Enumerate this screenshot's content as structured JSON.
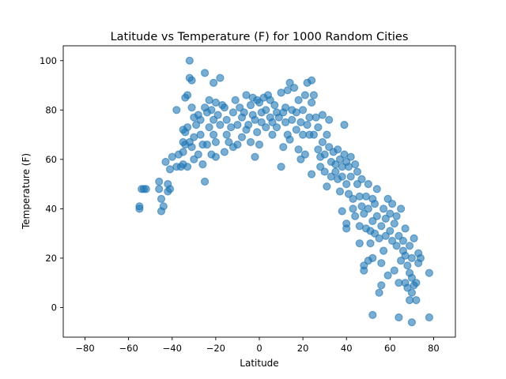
{
  "chart_data": {
    "type": "scatter",
    "title": "Latitude vs Temperature (F) for 1000 Random Cities",
    "xlabel": "Latitude",
    "ylabel": "Temperature (F)",
    "xlim": [
      -90,
      90
    ],
    "ylim": [
      -12,
      106
    ],
    "xticks": [
      -80,
      -60,
      -40,
      -20,
      0,
      20,
      40,
      60,
      80
    ],
    "yticks": [
      0,
      20,
      40,
      60,
      80,
      100
    ],
    "grid": false,
    "legend": "none",
    "marker_color": "#1f77b4",
    "marker_alpha": 0.6,
    "points": [
      [
        -55,
        40
      ],
      [
        -55,
        41
      ],
      [
        -54,
        48
      ],
      [
        -53,
        48
      ],
      [
        -52,
        48
      ],
      [
        -46,
        51
      ],
      [
        -46,
        48
      ],
      [
        -45,
        44
      ],
      [
        -45,
        39
      ],
      [
        -44,
        41
      ],
      [
        -43,
        59
      ],
      [
        -42,
        47
      ],
      [
        -42,
        50
      ],
      [
        -41,
        48
      ],
      [
        -41,
        56
      ],
      [
        -40,
        61
      ],
      [
        -38,
        80
      ],
      [
        -38,
        57
      ],
      [
        -37,
        62
      ],
      [
        -36,
        57
      ],
      [
        -35,
        63
      ],
      [
        -35,
        58
      ],
      [
        -35,
        67
      ],
      [
        -35,
        72
      ],
      [
        -34,
        85
      ],
      [
        -34,
        71
      ],
      [
        -34,
        66
      ],
      [
        -33,
        86
      ],
      [
        -33,
        57
      ],
      [
        -33,
        73
      ],
      [
        -32,
        100
      ],
      [
        -32,
        93
      ],
      [
        -32,
        67
      ],
      [
        -31,
        92
      ],
      [
        -31,
        81
      ],
      [
        -31,
        65
      ],
      [
        -30,
        77
      ],
      [
        -30,
        69
      ],
      [
        -30,
        60
      ],
      [
        -29,
        74
      ],
      [
        -28,
        62
      ],
      [
        -28,
        78
      ],
      [
        -27,
        76
      ],
      [
        -27,
        70
      ],
      [
        -26,
        58
      ],
      [
        -26,
        66
      ],
      [
        -25,
        95
      ],
      [
        -25,
        51
      ],
      [
        -25,
        81
      ],
      [
        -24,
        79
      ],
      [
        -24,
        66
      ],
      [
        -23,
        73
      ],
      [
        -23,
        84
      ],
      [
        -22,
        62
      ],
      [
        -22,
        80
      ],
      [
        -21,
        91
      ],
      [
        -21,
        76
      ],
      [
        -21,
        70
      ],
      [
        -20,
        83
      ],
      [
        -20,
        61
      ],
      [
        -20,
        67
      ],
      [
        -19,
        78
      ],
      [
        -18,
        93
      ],
      [
        -18,
        74
      ],
      [
        -17,
        82
      ],
      [
        -16,
        81
      ],
      [
        -16,
        63
      ],
      [
        -15,
        76
      ],
      [
        -15,
        70
      ],
      [
        -14,
        67
      ],
      [
        -13,
        73
      ],
      [
        -12,
        79
      ],
      [
        -12,
        65
      ],
      [
        -11,
        84
      ],
      [
        -10,
        74
      ],
      [
        -10,
        66
      ],
      [
        -9,
        81
      ],
      [
        -8,
        69
      ],
      [
        -8,
        77
      ],
      [
        -7,
        79
      ],
      [
        -6,
        72
      ],
      [
        -6,
        86
      ],
      [
        -5,
        74
      ],
      [
        -4,
        82
      ],
      [
        -4,
        67
      ],
      [
        -3,
        78
      ],
      [
        -3,
        85
      ],
      [
        -2,
        61
      ],
      [
        -2,
        76
      ],
      [
        -1,
        71
      ],
      [
        -1,
        84
      ],
      [
        0,
        83
      ],
      [
        0,
        66
      ],
      [
        1,
        79
      ],
      [
        1,
        75
      ],
      [
        2,
        85
      ],
      [
        3,
        73
      ],
      [
        3,
        80
      ],
      [
        4,
        86
      ],
      [
        5,
        77
      ],
      [
        5,
        84
      ],
      [
        6,
        75
      ],
      [
        6,
        70
      ],
      [
        7,
        82
      ],
      [
        8,
        79
      ],
      [
        8,
        73
      ],
      [
        9,
        77
      ],
      [
        10,
        57
      ],
      [
        10,
        87
      ],
      [
        11,
        79
      ],
      [
        11,
        65
      ],
      [
        12,
        75
      ],
      [
        12,
        81
      ],
      [
        13,
        88
      ],
      [
        13,
        70
      ],
      [
        14,
        91
      ],
      [
        14,
        68
      ],
      [
        15,
        76
      ],
      [
        15,
        80
      ],
      [
        16,
        89
      ],
      [
        17,
        72
      ],
      [
        17,
        79
      ],
      [
        18,
        64
      ],
      [
        18,
        84
      ],
      [
        19,
        60
      ],
      [
        19,
        75
      ],
      [
        20,
        70
      ],
      [
        20,
        80
      ],
      [
        21,
        86
      ],
      [
        21,
        62
      ],
      [
        22,
        74
      ],
      [
        22,
        91
      ],
      [
        23,
        70
      ],
      [
        23,
        77
      ],
      [
        24,
        54
      ],
      [
        24,
        92
      ],
      [
        24,
        83
      ],
      [
        25,
        70
      ],
      [
        25,
        86
      ],
      [
        26,
        77
      ],
      [
        27,
        64
      ],
      [
        27,
        73
      ],
      [
        28,
        61
      ],
      [
        28,
        57
      ],
      [
        29,
        67
      ],
      [
        29,
        78
      ],
      [
        30,
        55
      ],
      [
        30,
        62
      ],
      [
        31,
        70
      ],
      [
        31,
        49
      ],
      [
        32,
        76
      ],
      [
        32,
        65
      ],
      [
        33,
        59
      ],
      [
        33,
        53
      ],
      [
        34,
        63
      ],
      [
        35,
        58
      ],
      [
        35,
        55
      ],
      [
        36,
        64
      ],
      [
        36,
        52
      ],
      [
        37,
        47
      ],
      [
        37,
        60
      ],
      [
        38,
        39
      ],
      [
        38,
        57
      ],
      [
        38,
        53
      ],
      [
        39,
        74
      ],
      [
        39,
        62
      ],
      [
        40,
        34
      ],
      [
        40,
        32
      ],
      [
        40,
        59
      ],
      [
        40,
        50
      ],
      [
        41,
        57
      ],
      [
        41,
        46
      ],
      [
        42,
        61
      ],
      [
        42,
        53
      ],
      [
        43,
        40
      ],
      [
        43,
        44
      ],
      [
        44,
        58
      ],
      [
        44,
        37
      ],
      [
        45,
        50
      ],
      [
        45,
        55
      ],
      [
        46,
        33
      ],
      [
        46,
        26
      ],
      [
        46,
        45
      ],
      [
        47,
        41
      ],
      [
        47,
        52
      ],
      [
        48,
        15
      ],
      [
        48,
        17
      ],
      [
        48,
        38
      ],
      [
        49,
        45
      ],
      [
        49,
        32
      ],
      [
        50,
        19
      ],
      [
        50,
        50
      ],
      [
        50,
        40
      ],
      [
        51,
        31
      ],
      [
        51,
        26
      ],
      [
        52,
        20
      ],
      [
        52,
        44
      ],
      [
        52,
        35
      ],
      [
        52,
        -3
      ],
      [
        53,
        42
      ],
      [
        53,
        30
      ],
      [
        54,
        48
      ],
      [
        54,
        37
      ],
      [
        55,
        28
      ],
      [
        55,
        6
      ],
      [
        56,
        33
      ],
      [
        56,
        18
      ],
      [
        56,
        9
      ],
      [
        57,
        40
      ],
      [
        57,
        23
      ],
      [
        58,
        36
      ],
      [
        58,
        29
      ],
      [
        59,
        44
      ],
      [
        59,
        13
      ],
      [
        60,
        31
      ],
      [
        60,
        38
      ],
      [
        61,
        27
      ],
      [
        61,
        42
      ],
      [
        62,
        15
      ],
      [
        62,
        34
      ],
      [
        63,
        25
      ],
      [
        63,
        37
      ],
      [
        64,
        10
      ],
      [
        64,
        29
      ],
      [
        64,
        -4
      ],
      [
        65,
        19
      ],
      [
        65,
        40
      ],
      [
        66,
        23
      ],
      [
        66,
        27
      ],
      [
        67,
        21
      ],
      [
        67,
        10
      ],
      [
        67,
        32
      ],
      [
        68,
        17
      ],
      [
        68,
        8
      ],
      [
        69,
        25
      ],
      [
        69,
        14
      ],
      [
        69,
        3
      ],
      [
        70,
        12
      ],
      [
        70,
        6
      ],
      [
        70,
        20
      ],
      [
        70,
        -6
      ],
      [
        71,
        9
      ],
      [
        71,
        28
      ],
      [
        72,
        10
      ],
      [
        72,
        3
      ],
      [
        73,
        18
      ],
      [
        73,
        22
      ],
      [
        74,
        20
      ],
      [
        78,
        14
      ],
      [
        78,
        -4
      ]
    ]
  }
}
